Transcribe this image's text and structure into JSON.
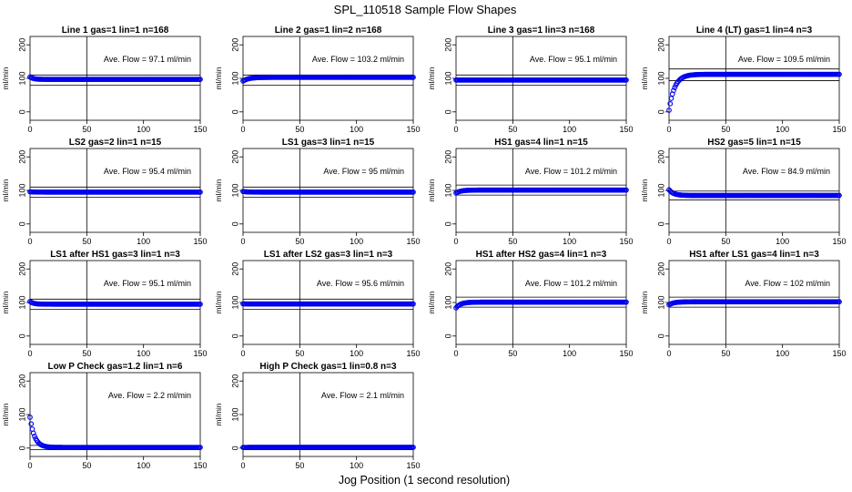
{
  "title": "SPL_110518  Sample Flow Shapes",
  "xlabel": "Jog Position (1 second resolution)",
  "ylabel": "ml/min",
  "colors": {
    "points": "#0000ee",
    "axes": "#000000"
  },
  "chart_data": [
    {
      "type": "scatter",
      "title": "Line 1 gas=1 lin=1 n=168",
      "annotation": "Ave. Flow = 97.1  ml/min",
      "ave": 97.1,
      "refs": [
        80,
        110
      ],
      "vline": 50,
      "shape": {
        "start": 104,
        "plateau": 97,
        "tau": 3
      },
      "xlim": [
        0,
        150
      ],
      "ylim": [
        -25,
        225
      ],
      "xticks": [
        0,
        50,
        100,
        150
      ],
      "yticks": [
        0,
        100,
        200
      ]
    },
    {
      "type": "scatter",
      "title": "Line 2 gas=1 lin=2 n=168",
      "annotation": "Ave. Flow = 103.2  ml/min",
      "ave": 103.2,
      "refs": [
        80,
        110
      ],
      "vline": 50,
      "shape": {
        "start": 92,
        "plateau": 103,
        "tau": 5
      },
      "xlim": [
        0,
        150
      ],
      "ylim": [
        -25,
        225
      ],
      "xticks": [
        0,
        50,
        100,
        150
      ],
      "yticks": [
        0,
        100,
        200
      ]
    },
    {
      "type": "scatter",
      "title": "Line 3 gas=1 lin=3 n=168",
      "annotation": "Ave. Flow = 95.1  ml/min",
      "ave": 95.1,
      "refs": [
        80,
        110
      ],
      "vline": 50,
      "shape": {
        "start": 95,
        "plateau": 95,
        "tau": 3
      },
      "xlim": [
        0,
        150
      ],
      "ylim": [
        -25,
        225
      ],
      "xticks": [
        0,
        50,
        100,
        150
      ],
      "yticks": [
        0,
        100,
        200
      ]
    },
    {
      "type": "scatter",
      "title": "Line 4 (LT) gas=1 lin=4 n=3",
      "annotation": "Ave. Flow = 109.5  ml/min",
      "ave": 109.5,
      "refs": [
        93,
        128
      ],
      "vline": 50,
      "shape": {
        "start": 5,
        "plateau": 112,
        "tau": 5
      },
      "xlim": [
        0,
        150
      ],
      "ylim": [
        -25,
        225
      ],
      "xticks": [
        0,
        50,
        100,
        150
      ],
      "yticks": [
        0,
        100,
        200
      ]
    },
    {
      "type": "scatter",
      "title": "LS2 gas=2 lin=1 n=15",
      "annotation": "Ave. Flow = 95.4  ml/min",
      "ave": 95.4,
      "refs": [
        80,
        110
      ],
      "vline": 50,
      "shape": {
        "start": 96,
        "plateau": 95,
        "tau": 3
      },
      "xlim": [
        0,
        150
      ],
      "ylim": [
        -25,
        225
      ],
      "xticks": [
        0,
        50,
        100,
        150
      ],
      "yticks": [
        0,
        100,
        200
      ]
    },
    {
      "type": "scatter",
      "title": "LS1 gas=3 lin=1 n=15",
      "annotation": "Ave. Flow = 95  ml/min",
      "ave": 95,
      "refs": [
        80,
        110
      ],
      "vline": 50,
      "shape": {
        "start": 97,
        "plateau": 95,
        "tau": 3
      },
      "xlim": [
        0,
        150
      ],
      "ylim": [
        -25,
        225
      ],
      "xticks": [
        0,
        50,
        100,
        150
      ],
      "yticks": [
        0,
        100,
        200
      ]
    },
    {
      "type": "scatter",
      "title": "HS1 gas=4 lin=1 n=15",
      "annotation": "Ave. Flow = 101.2  ml/min",
      "ave": 101.2,
      "refs": [
        86,
        116
      ],
      "vline": 50,
      "shape": {
        "start": 92,
        "plateau": 101,
        "tau": 4
      },
      "xlim": [
        0,
        150
      ],
      "ylim": [
        -25,
        225
      ],
      "xticks": [
        0,
        50,
        100,
        150
      ],
      "yticks": [
        0,
        100,
        200
      ]
    },
    {
      "type": "scatter",
      "title": "HS2 gas=5 lin=1 n=15",
      "annotation": "Ave. Flow = 84.9  ml/min",
      "ave": 84.9,
      "refs": [
        72,
        98
      ],
      "vline": 50,
      "shape": {
        "start": 102,
        "plateau": 85,
        "tau": 4
      },
      "xlim": [
        0,
        150
      ],
      "ylim": [
        -25,
        225
      ],
      "xticks": [
        0,
        50,
        100,
        150
      ],
      "yticks": [
        0,
        100,
        200
      ]
    },
    {
      "type": "scatter",
      "title": "LS1 after HS1 gas=3 lin=1 n=3",
      "annotation": "Ave. Flow = 95.1  ml/min",
      "ave": 95.1,
      "refs": [
        80,
        110
      ],
      "vline": 50,
      "shape": {
        "start": 103,
        "plateau": 95,
        "tau": 3
      },
      "xlim": [
        0,
        150
      ],
      "ylim": [
        -25,
        225
      ],
      "xticks": [
        0,
        50,
        100,
        150
      ],
      "yticks": [
        0,
        100,
        200
      ]
    },
    {
      "type": "scatter",
      "title": "LS1 after LS2 gas=3 lin=1 n=3",
      "annotation": "Ave. Flow = 95.6  ml/min",
      "ave": 95.6,
      "refs": [
        80,
        110
      ],
      "vline": 50,
      "shape": {
        "start": 96,
        "plateau": 95.6,
        "tau": 3
      },
      "xlim": [
        0,
        150
      ],
      "ylim": [
        -25,
        225
      ],
      "xticks": [
        0,
        50,
        100,
        150
      ],
      "yticks": [
        0,
        100,
        200
      ]
    },
    {
      "type": "scatter",
      "title": "HS1 after HS2 gas=4 lin=1 n=3",
      "annotation": "Ave. Flow = 101.2  ml/min",
      "ave": 101.2,
      "refs": [
        86,
        116
      ],
      "vline": 50,
      "shape": {
        "start": 84,
        "plateau": 101,
        "tau": 4
      },
      "xlim": [
        0,
        150
      ],
      "ylim": [
        -25,
        225
      ],
      "xticks": [
        0,
        50,
        100,
        150
      ],
      "yticks": [
        0,
        100,
        200
      ]
    },
    {
      "type": "scatter",
      "title": "HS1 after LS1 gas=4 lin=1 n=3",
      "annotation": "Ave. Flow = 102  ml/min",
      "ave": 102,
      "refs": [
        86,
        116
      ],
      "vline": 50,
      "shape": {
        "start": 93,
        "plateau": 102,
        "tau": 4
      },
      "xlim": [
        0,
        150
      ],
      "ylim": [
        -25,
        225
      ],
      "xticks": [
        0,
        50,
        100,
        150
      ],
      "yticks": [
        0,
        100,
        200
      ]
    },
    {
      "type": "scatter",
      "title": "Low P Check gas=1.2 lin=1 n=6",
      "annotation": "Ave. Flow = 2.2  ml/min",
      "ave": 2.2,
      "refs": [
        -5,
        8
      ],
      "vline": 50,
      "shape": {
        "start": 92,
        "plateau": 2,
        "tau": 4
      },
      "xlim": [
        0,
        150
      ],
      "ylim": [
        -25,
        225
      ],
      "xticks": [
        0,
        50,
        100,
        150
      ],
      "yticks": [
        0,
        100,
        200
      ]
    },
    {
      "type": "scatter",
      "title": "High P Check gas=1 lin=0.8 n=3",
      "annotation": "Ave. Flow = 2.1  ml/min",
      "ave": 2.1,
      "refs": [
        -5,
        8
      ],
      "vline": 50,
      "shape": {
        "start": 2,
        "plateau": 2.1,
        "tau": 3
      },
      "xlim": [
        0,
        150
      ],
      "ylim": [
        -25,
        225
      ],
      "xticks": [
        0,
        50,
        100,
        150
      ],
      "yticks": [
        0,
        100,
        200
      ]
    }
  ]
}
